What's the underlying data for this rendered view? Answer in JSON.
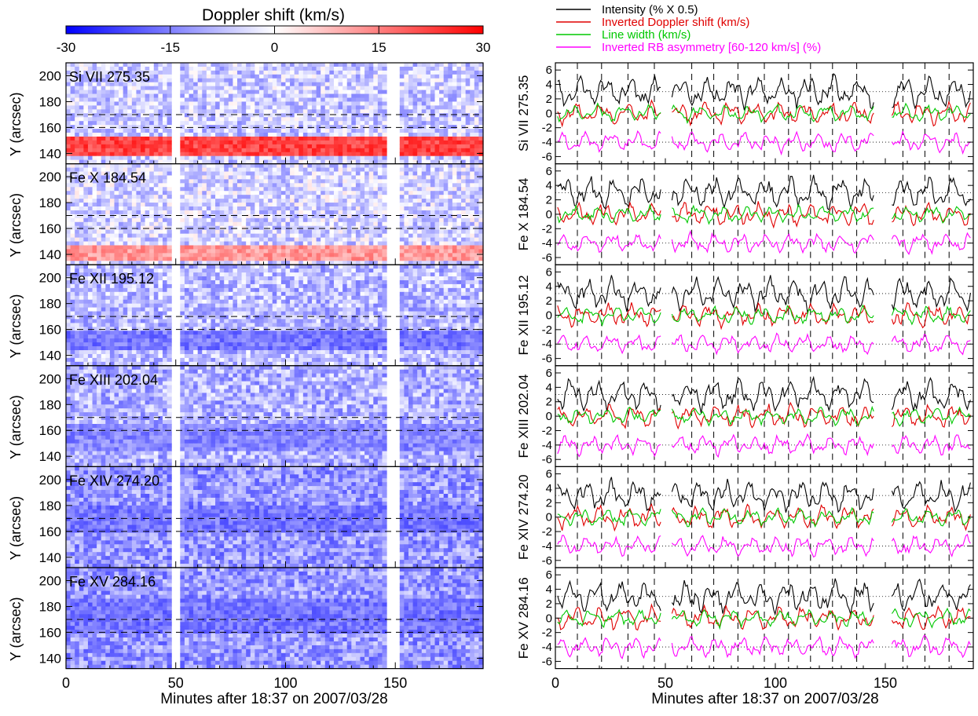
{
  "colorbar": {
    "title": "Doppler shift (km/s)",
    "ticks": [
      "-30",
      "-15",
      "0",
      "15",
      "30"
    ],
    "range": [
      -30,
      30
    ]
  },
  "left_panels": {
    "ylabel": "Y (arcsec)",
    "xlabel": "Minutes after 18:37 on 2007/03/28",
    "yticks": [
      "200",
      "180",
      "160",
      "140"
    ],
    "xticks": [
      "0",
      "50",
      "100",
      "150"
    ]
  },
  "right_panels": {
    "xlabel": "Minutes after 18:37 on 2007/03/28",
    "yticks": [
      "6",
      "4",
      "2",
      "0",
      "-2",
      "-4",
      "-6"
    ],
    "xticks": [
      "0",
      "50",
      "100",
      "150"
    ]
  },
  "legend": [
    {
      "label": "Intensity (% X 0.5)",
      "color": "#000000"
    },
    {
      "label": "Inverted Doppler shift (km/s)",
      "color": "#e00000"
    },
    {
      "label": "Line width (km/s)",
      "color": "#00c800"
    },
    {
      "label": "Inverted RB asymmetry [60-120 km/s] (%)",
      "color": "#ff00ff"
    }
  ],
  "colors": {
    "blue": "#0000ff",
    "red": "#ff0000",
    "white": "#ffffff",
    "intensity": "#000000",
    "doppler": "#e00000",
    "width": "#00c800",
    "rb": "#ff00ff"
  },
  "chart_data": [
    {
      "type": "heatmap",
      "title": "Doppler shift (km/s)",
      "xlabel": "Minutes after 18:37 on 2007/03/28",
      "ylabel": "Y (arcsec)",
      "xlim": [
        0,
        190
      ],
      "ylim": [
        132,
        210
      ],
      "zlim": [
        -30,
        30
      ],
      "data_gaps_minutes": [
        [
          49,
          52
        ],
        [
          146,
          152
        ]
      ],
      "reference_lines_y": [
        160,
        170
      ],
      "panels": [
        {
          "name": "Si VII 275.35",
          "mean_upper": -6,
          "band": {
            "y": [
              138,
              152
            ],
            "value": 22
          }
        },
        {
          "name": "Fe X 184.54",
          "mean_upper": -5,
          "band": {
            "y": [
              134,
              146
            ],
            "value": 12
          }
        },
        {
          "name": "Fe XII 195.12",
          "mean_upper": -8,
          "band": {
            "y": [
              145,
              160
            ],
            "value": -16
          }
        },
        {
          "name": "Fe XIII 202.04",
          "mean_upper": -9,
          "band": {
            "y": [
              145,
              165
            ],
            "value": -14
          }
        },
        {
          "name": "Fe XIV 274.20",
          "mean_upper": -12,
          "band": {
            "y": [
              160,
              180
            ],
            "value": -16
          }
        },
        {
          "name": "Fe XV 284.16",
          "mean_upper": -12,
          "band": {
            "y": [
              160,
              185
            ],
            "value": -16
          }
        }
      ]
    },
    {
      "type": "line",
      "xlabel": "Minutes after 18:37 on 2007/03/28",
      "xlim": [
        0,
        190
      ],
      "ylim": [
        -7,
        7
      ],
      "data_gaps_minutes": [
        [
          49,
          52
        ],
        [
          146,
          152
        ]
      ],
      "dotted_reference_y": [
        3,
        -4
      ],
      "vertical_dashed_x": [
        10,
        21,
        33,
        45,
        62,
        72,
        83,
        95,
        106,
        116,
        126,
        137,
        158,
        168,
        179
      ],
      "series": [
        {
          "name": "Intensity (% X 0.5)",
          "offset": 3
        },
        {
          "name": "Inverted Doppler shift (km/s)",
          "offset": 0
        },
        {
          "name": "Line width (km/s)",
          "offset": 0
        },
        {
          "name": "Inverted RB asymmetry [60-120 km/s] (%)",
          "offset": -4
        }
      ],
      "panels": [
        "Si VII 275.35",
        "Fe X 184.54",
        "Fe XII 195.12",
        "Fe XIII 202.04",
        "Fe XIV 274.20",
        "Fe XV 284.16"
      ]
    }
  ]
}
